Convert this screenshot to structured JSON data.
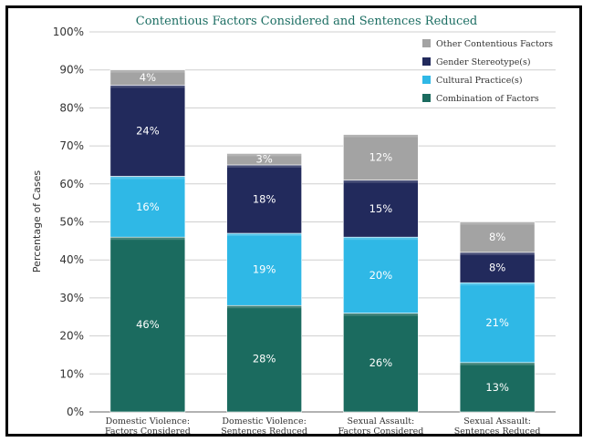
{
  "chart_data": {
    "type": "bar",
    "stacked": true,
    "title": "Contentious Factors Considered and Sentences Reduced",
    "ylabel": "Percentage of Cases",
    "xlabel": "",
    "ylim": [
      0,
      100
    ],
    "yticks": [
      "0%",
      "10%",
      "20%",
      "30%",
      "40%",
      "50%",
      "60%",
      "70%",
      "80%",
      "90%",
      "100%"
    ],
    "grid": true,
    "legend_position": "top-right",
    "categories": [
      [
        "Domestic Violence:",
        "Factors Considered"
      ],
      [
        "Domestic Violence:",
        "Sentences Reduced"
      ],
      [
        "Sexual Assault:",
        "Factors Considered"
      ],
      [
        "Sexual Assault:",
        "Sentences Reduced"
      ]
    ],
    "series": [
      {
        "name": "Combination of Factors",
        "color": "#1b6b5f",
        "values": [
          46,
          28,
          26,
          13
        ]
      },
      {
        "name": "Cultural Practice(s)",
        "color": "#2fb8e6",
        "values": [
          16,
          19,
          20,
          21
        ]
      },
      {
        "name": "Gender Stereotype(s)",
        "color": "#222a5c",
        "values": [
          24,
          18,
          15,
          8
        ]
      },
      {
        "name": "Other Contentious Factors",
        "color": "#a3a3a3",
        "values": [
          4,
          3,
          12,
          8
        ]
      }
    ],
    "legend_order": [
      "Other Contentious Factors",
      "Gender Stereotype(s)",
      "Cultural Practice(s)",
      "Combination of Factors"
    ]
  }
}
